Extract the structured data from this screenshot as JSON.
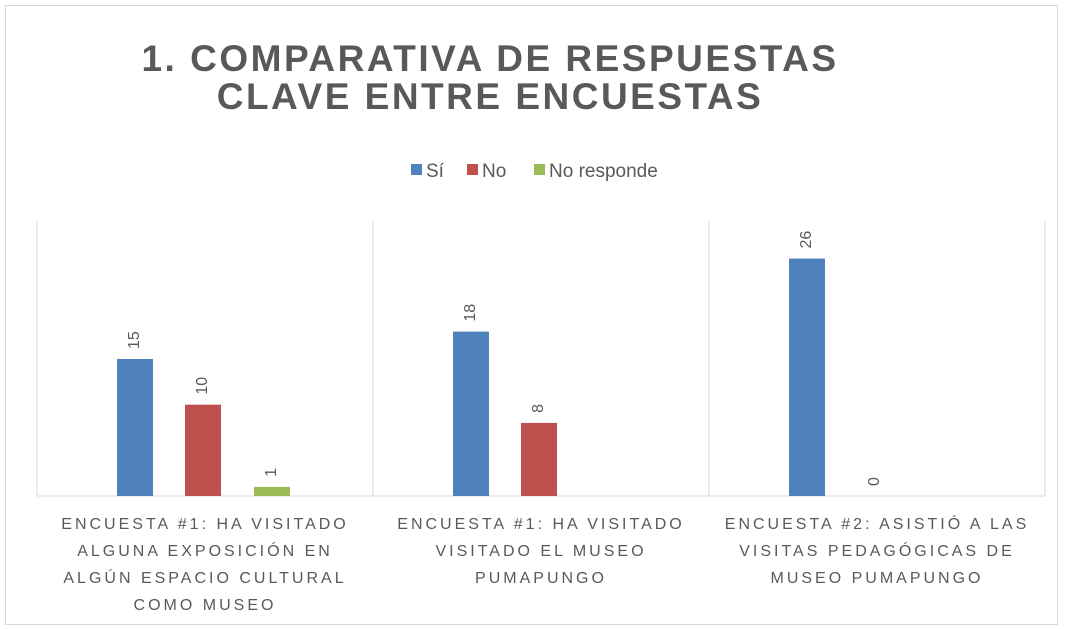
{
  "chart_data": {
    "type": "bar",
    "title": "1. COMPARATIVA DE RESPUESTAS CLAVE ENTRE ENCUESTAS",
    "categories": [
      "ENCUESTA #1: HA VISITADO ALGUNA EXPOSICIÓN EN ALGÚN ESPACIO CULTURAL COMO MUSEO",
      "ENCUESTA #1: HA VISITADO VISITADO EL MUSEO PUMAPUNGO",
      "ENCUESTA #2: ASISTIÓ A LAS VISITAS PEDAGÓGICAS DE MUSEO PUMAPUNGO"
    ],
    "series": [
      {
        "name": "Sí",
        "color": "#4f81bd",
        "values": [
          15,
          18,
          26
        ]
      },
      {
        "name": "No",
        "color": "#c0504d",
        "values": [
          10,
          8,
          0
        ]
      },
      {
        "name": "No responde",
        "color": "#9bbb59",
        "values": [
          1,
          null,
          null
        ]
      }
    ],
    "ylim": [
      0,
      30
    ],
    "legend": "top"
  }
}
